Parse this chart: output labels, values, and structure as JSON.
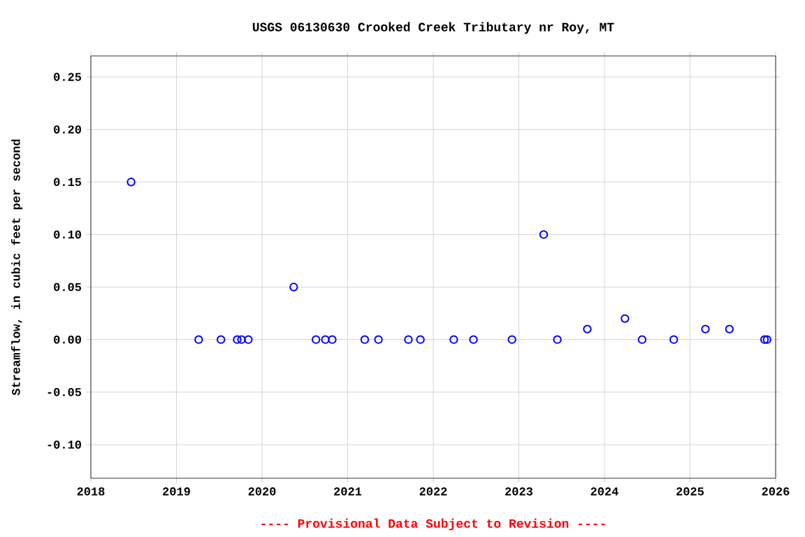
{
  "chart_data": {
    "type": "scatter",
    "title": "USGS 06130630 Crooked Creek Tributary nr Roy, MT",
    "ylabel": "Streamflow, in cubic feet per second",
    "annotations": [
      "---- Provisional Data Subject to Revision ----"
    ],
    "x": [
      2018.47,
      2019.26,
      2019.52,
      2019.71,
      2019.76,
      2019.84,
      2020.37,
      2020.63,
      2020.74,
      2020.82,
      2021.2,
      2021.36,
      2021.71,
      2021.85,
      2022.24,
      2022.47,
      2022.92,
      2023.29,
      2023.45,
      2023.8,
      2024.24,
      2024.44,
      2024.81,
      2025.18,
      2025.46,
      2025.87,
      2025.9
    ],
    "series": [
      {
        "color": "#0000ff",
        "values": [
          0.15,
          0,
          0,
          0,
          0,
          0,
          0.05,
          0,
          0,
          0,
          0,
          0,
          0,
          0,
          0,
          0,
          0,
          0.1,
          0,
          0.01,
          0.02,
          0,
          0,
          0.01,
          0.01,
          0,
          0
        ]
      }
    ],
    "xlim": [
      2018,
      2026
    ],
    "xticks": [
      2018,
      2019,
      2020,
      2021,
      2022,
      2023,
      2024,
      2025,
      2026
    ],
    "ylim": [
      -0.132,
      0.27
    ],
    "yticks": [
      {
        "value": -0.1,
        "label": "-0.10"
      },
      {
        "value": -0.05,
        "label": "-0.05"
      },
      {
        "value": 0,
        "label": "0.00"
      },
      {
        "value": 0.05,
        "label": "0.05"
      },
      {
        "value": 0.1,
        "label": "0.10"
      },
      {
        "value": 0.15,
        "label": "0.15"
      },
      {
        "value": 0.2,
        "label": "0.20"
      },
      {
        "value": 0.25,
        "label": "0.25"
      }
    ],
    "grid": true,
    "marker": "circle"
  }
}
